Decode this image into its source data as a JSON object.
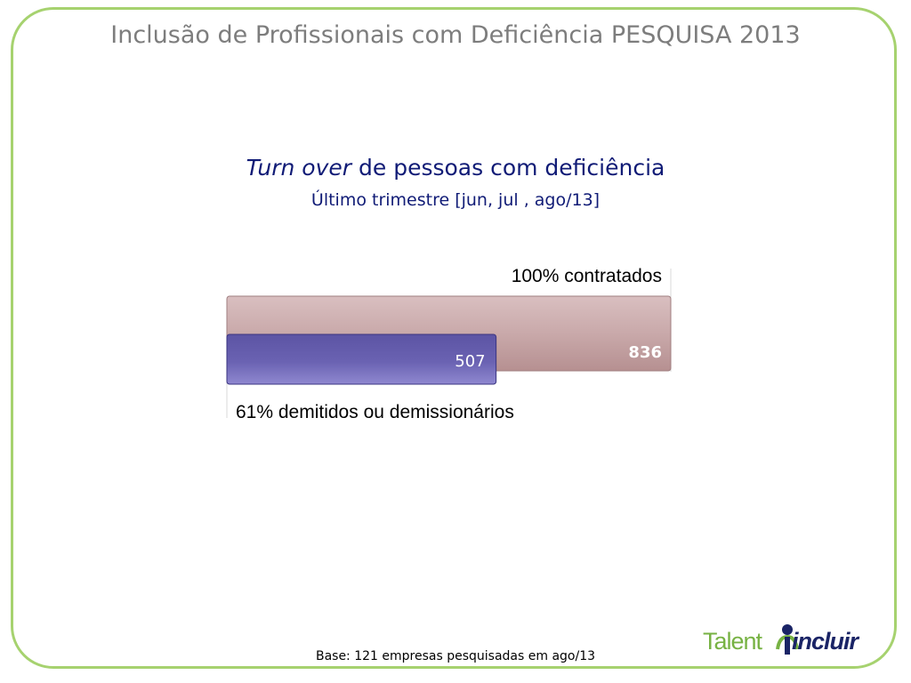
{
  "slide": {
    "title": "Inclusão de Profissionais com Deficiência PESQUISA 2013",
    "base_note": "Base: 121 empresas pesquisadas em ago/13",
    "logo": {
      "part1": "Talent",
      "part2": "incluir"
    }
  },
  "chart_data": {
    "type": "bar",
    "orientation": "horizontal",
    "title_italic": "Turn over",
    "title_rest": " de pessoas com deficiência",
    "subtitle": "Último trimestre [jun, jul , ago/13]",
    "series": [
      {
        "name": "100% contratados",
        "value": 836,
        "value_label": "836",
        "color": "#c9a9aa",
        "border": "#a07f80",
        "label_color": "#ffffff"
      },
      {
        "name": "61% demitidos ou demissionários",
        "value": 507,
        "value_label": "507",
        "color": "#6b63b0",
        "border": "#3a3480",
        "label_color": "#ffffff"
      }
    ],
    "xlim": [
      0,
      836
    ],
    "grid": false,
    "legend": "none"
  },
  "colors": {
    "frame": "#a6d26f",
    "title": "#7d7d7d",
    "chart_title": "#101b76"
  }
}
